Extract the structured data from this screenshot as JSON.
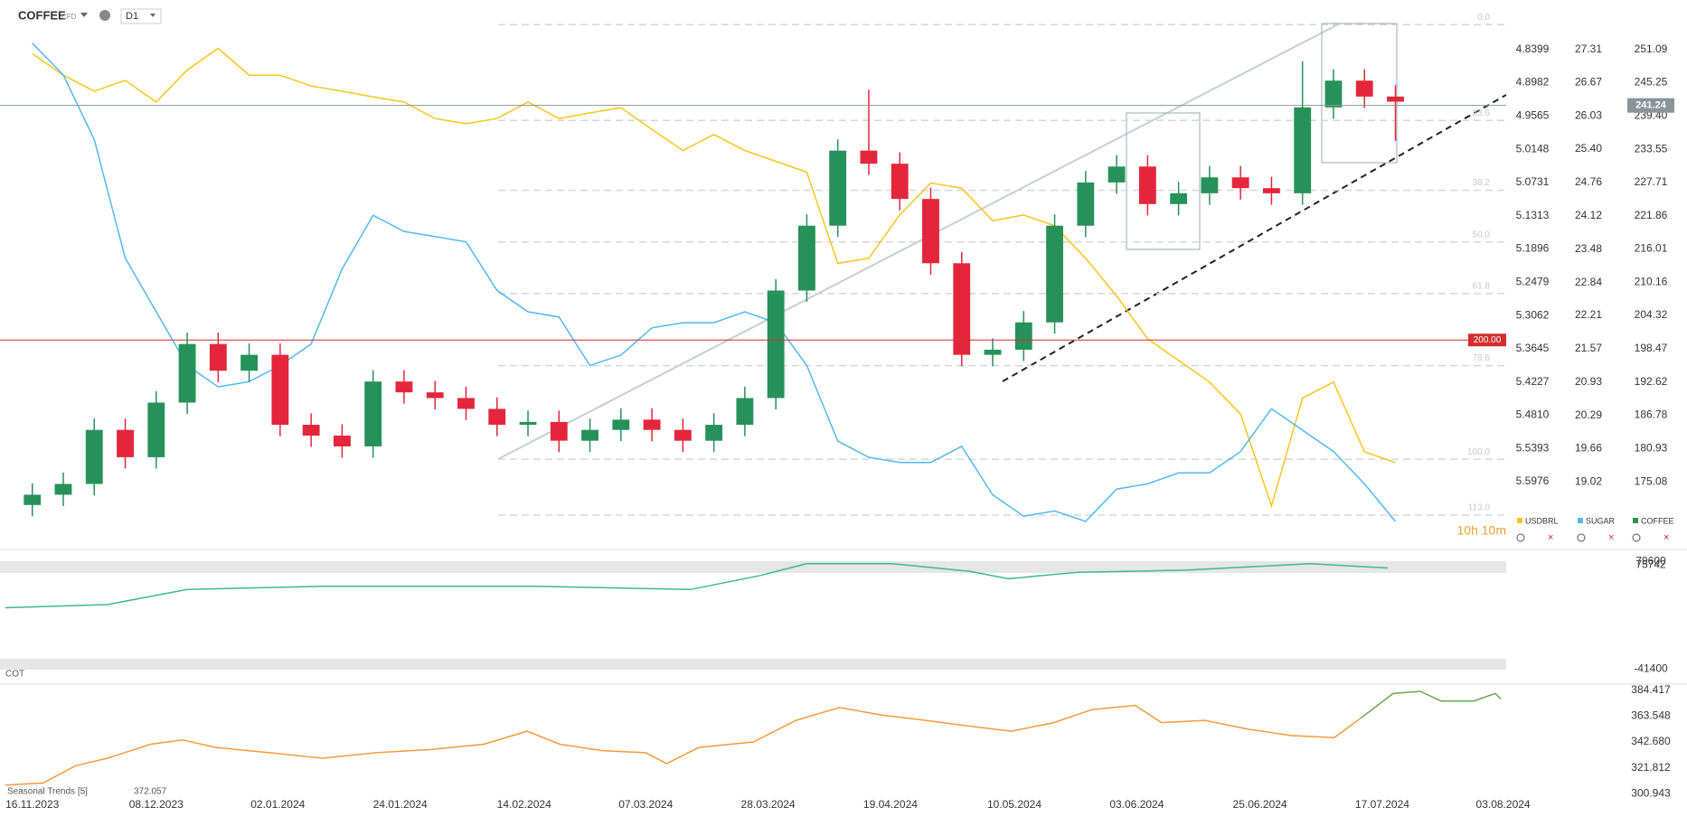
{
  "header": {
    "symbol": "COFFEE",
    "instrument": "CFD",
    "timeframe": "D1"
  },
  "chart_data": [
    {
      "type": "candlestick",
      "x": [
        0,
        4,
        8,
        12,
        16,
        20,
        24,
        28,
        32,
        36,
        40,
        44,
        48,
        52,
        56,
        60,
        64,
        68,
        72,
        76,
        80,
        84,
        88,
        92,
        96,
        100,
        104,
        108,
        112,
        116,
        120,
        124,
        128,
        132,
        136,
        140,
        144,
        148,
        152,
        156,
        160,
        164,
        168,
        172,
        176
      ],
      "xlim": [
        -4.17,
        190.3
      ],
      "xticks": [
        {
          "value": 0,
          "label": "16.11.2023"
        },
        {
          "value": 16,
          "label": "08.12.2023"
        },
        {
          "value": 31.7,
          "label": "02.01.2024"
        },
        {
          "value": 47.5,
          "label": "24.01.2024"
        },
        {
          "value": 63.5,
          "label": "14.02.2024"
        },
        {
          "value": 79.2,
          "label": "07.03.2024"
        },
        {
          "value": 95,
          "label": "28.03.2024"
        },
        {
          "value": 110.8,
          "label": "19.04.2024"
        },
        {
          "value": 126.8,
          "label": "10.05.2024"
        },
        {
          "value": 142.6,
          "label": "03.06.2024"
        },
        {
          "value": 158.5,
          "label": "25.06.2024"
        },
        {
          "value": 174.3,
          "label": "17.07.2024"
        },
        {
          "value": 189.9,
          "label": "03.08.2024"
        }
      ],
      "series": [
        {
          "name": "USDBRL",
          "style": "line",
          "color": "#f7c520",
          "values": [
            4.847,
            4.885,
            4.913,
            4.894,
            4.932,
            4.876,
            4.838,
            4.885,
            4.885,
            4.904,
            4.913,
            4.923,
            4.932,
            4.961,
            4.97,
            4.961,
            4.932,
            4.961,
            4.951,
            4.942,
            4.98,
            5.017,
            4.989,
            5.017,
            5.036,
            5.055,
            5.215,
            5.206,
            5.13,
            5.074,
            5.083,
            5.14,
            5.13,
            5.149,
            5.206,
            5.272,
            5.347,
            5.385,
            5.423,
            5.479,
            5.64,
            5.451,
            5.423,
            5.545,
            5.564
          ],
          "ylim": [
            5.7147,
            4.7849
          ],
          "yticks": [
            4.8399,
            4.8982,
            4.9565,
            5.0148,
            5.0731,
            5.1313,
            5.1896,
            5.2479,
            5.3062,
            5.3645,
            5.4227,
            {
              "value": 5.481,
              "label": "5.4810"
            },
            5.5393,
            5.5976
          ]
        },
        {
          "name": "SUGAR",
          "style": "line",
          "color": "#52b9f0",
          "values": [
            27.43,
            26.82,
            25.58,
            23.31,
            22.28,
            21.25,
            20.84,
            20.94,
            21.25,
            21.66,
            23.1,
            24.13,
            23.82,
            23.72,
            23.62,
            22.69,
            22.28,
            22.18,
            21.25,
            21.45,
            21.97,
            22.07,
            22.07,
            22.28,
            22.07,
            21.25,
            19.8,
            19.49,
            19.39,
            19.39,
            19.7,
            18.77,
            18.36,
            18.46,
            18.26,
            18.88,
            18.98,
            19.19,
            19.19,
            19.6,
            20.42,
            20.01,
            19.6,
            18.98,
            18.26
          ],
          "ylim": [
            17.74,
            27.91
          ],
          "yticks": [
            27.31,
            26.67,
            26.03,
            {
              "value": 25.4,
              "label": "25.40"
            },
            24.76,
            24.12,
            23.48,
            22.84,
            22.21,
            21.57,
            20.93,
            20.29,
            19.66,
            19.02
          ]
        },
        {
          "name": "COFFEE",
          "style": "candlestick",
          "color": "#26925a",
          "up_color": "#26925a",
          "down_color": "#e3263b",
          "open": [
            171.0,
            172.8,
            174.7,
            184.2,
            179.4,
            189.0,
            199.3,
            194.6,
            197.4,
            185.1,
            183.2,
            181.3,
            192.7,
            190.8,
            189.8,
            187.9,
            185.1,
            185.6,
            182.3,
            184.2,
            186.0,
            184.2,
            182.3,
            185.1,
            189.8,
            208.7,
            220.1,
            233.3,
            231.0,
            224.8,
            213.5,
            197.4,
            198.3,
            203.1,
            220.1,
            227.7,
            230.5,
            223.9,
            225.8,
            228.6,
            226.7,
            225.8,
            240.9,
            245.6,
            242.8
          ],
          "high": [
            174.8,
            176.7,
            186.2,
            186.2,
            191.0,
            201.3,
            201.3,
            199.4,
            199.4,
            187.1,
            185.2,
            194.7,
            194.7,
            192.8,
            191.8,
            189.9,
            187.6,
            187.6,
            186.2,
            188.0,
            188.0,
            186.2,
            187.1,
            191.8,
            210.7,
            222.1,
            235.3,
            244.0,
            233.0,
            226.8,
            215.5,
            200.3,
            205.1,
            222.1,
            229.7,
            232.5,
            232.5,
            227.8,
            230.6,
            230.6,
            228.7,
            249.0,
            247.6,
            247.6,
            244.8
          ],
          "low": [
            169.0,
            170.8,
            172.7,
            177.4,
            177.4,
            187.0,
            192.6,
            192.6,
            183.1,
            181.2,
            179.3,
            179.3,
            188.8,
            187.8,
            185.9,
            183.1,
            183.1,
            180.3,
            180.3,
            182.2,
            182.2,
            180.3,
            180.3,
            183.1,
            187.8,
            206.7,
            218.1,
            229.0,
            222.8,
            211.5,
            195.4,
            195.4,
            196.3,
            201.1,
            218.1,
            225.7,
            221.9,
            221.9,
            223.8,
            224.7,
            223.8,
            223.8,
            238.9,
            240.8,
            235.0
          ],
          "close": [
            172.8,
            174.7,
            184.2,
            179.4,
            189.0,
            199.3,
            194.6,
            197.4,
            185.1,
            183.2,
            181.3,
            192.7,
            190.8,
            189.8,
            187.9,
            185.1,
            185.6,
            182.3,
            184.2,
            186.0,
            184.2,
            182.3,
            185.1,
            189.8,
            208.7,
            220.1,
            233.3,
            231.0,
            224.8,
            213.5,
            197.4,
            198.3,
            203.1,
            220.1,
            227.7,
            230.5,
            223.9,
            225.8,
            228.6,
            226.7,
            225.8,
            240.9,
            245.6,
            242.8,
            241.9
          ],
          "ylim": [
            163.34,
            256.6
          ],
          "yticks": [
            251.09,
            245.25,
            {
              "value": 239.4,
              "label": "239.40"
            },
            233.55,
            227.71,
            221.86,
            216.01,
            210.16,
            204.32,
            198.47,
            192.62,
            186.78,
            180.93,
            175.08
          ],
          "last_price": {
            "value": 241.24,
            "label": "241.24"
          }
        }
      ],
      "levels": [
        {
          "value": 200,
          "label": "200.00",
          "color": "#d42d2d"
        }
      ],
      "fib_levels": [
        {
          "value": 255.44,
          "label": "0.0"
        },
        {
          "value": 238.61,
          "label": "23.6"
        },
        {
          "value": 226.32,
          "label": "38.2"
        },
        {
          "value": 217.24,
          "label": "50.0"
        },
        {
          "value": 208.17,
          "label": "61.8"
        },
        {
          "value": 195.5,
          "label": "78.6"
        },
        {
          "value": 179.04,
          "label": "100.0"
        },
        {
          "value": 169.21,
          "label": "113.0"
        }
      ],
      "countdown": "10h 10m"
    },
    {
      "type": "line",
      "title": "COT",
      "color": "#3dba8c",
      "x": [
        -3.5,
        9.7,
        20,
        37.5,
        51,
        65,
        85,
        94,
        100,
        111,
        121,
        126,
        135,
        149,
        165,
        175
      ],
      "values": [
        27570,
        31200,
        48140,
        51770,
        51770,
        51770,
        48140,
        63870,
        77180,
        77180,
        68710,
        60240,
        67500,
        69920,
        77180,
        72340
      ],
      "xlim": [
        -4.17,
        190.3
      ],
      "ylim": [
        -45030,
        88070
      ],
      "yticks": [
        79600,
        75742,
        -41400
      ]
    },
    {
      "type": "line",
      "title": "Seasonal Trends [5]",
      "last_value": 372.057,
      "xlim": [
        -4.17,
        190.3
      ],
      "ylim": [
        297.5,
        387.9
      ],
      "yticks": [
        384.417,
        363.548,
        {
          "value": 342.68,
          "label": "342.680"
        },
        321.812,
        300.943
      ],
      "series": [
        {
          "color": "#f39b3c",
          "x": [
            -3.5,
            1.4,
            5.6,
            9.7,
            15.3,
            19.4,
            23.6,
            30.6,
            37.5,
            44.4,
            51.4,
            58.3,
            63.9,
            68.1,
            73.6,
            79.2,
            81.9,
            86.1,
            93.1,
            98.6,
            104.2,
            109.7,
            115.3,
            120.8,
            126.4,
            131.9,
            136.8,
            142.4,
            145.8,
            151.4,
            156.9,
            162.5,
            168.1,
            171.5
          ],
          "values": [
            307.9,
            309.6,
            323.5,
            329.6,
            340.9,
            344.4,
            338.3,
            334.0,
            329.6,
            334.0,
            336.6,
            340.9,
            351.4,
            340.9,
            335.7,
            334.0,
            325.3,
            338.3,
            342.7,
            360.1,
            370.5,
            364.4,
            360.1,
            355.7,
            351.4,
            358.3,
            368.8,
            372.2,
            358.3,
            360.1,
            353.1,
            347.9,
            346.2,
            361.8
          ]
        },
        {
          "color": "#6aa84f",
          "x": [
            171.5,
            175.7,
            179.2,
            181.9,
            186.1,
            188.9,
            189.6
          ],
          "values": [
            361.8,
            381.8,
            383.5,
            375.7,
            375.7,
            381.8,
            377.5
          ]
        }
      ]
    }
  ]
}
